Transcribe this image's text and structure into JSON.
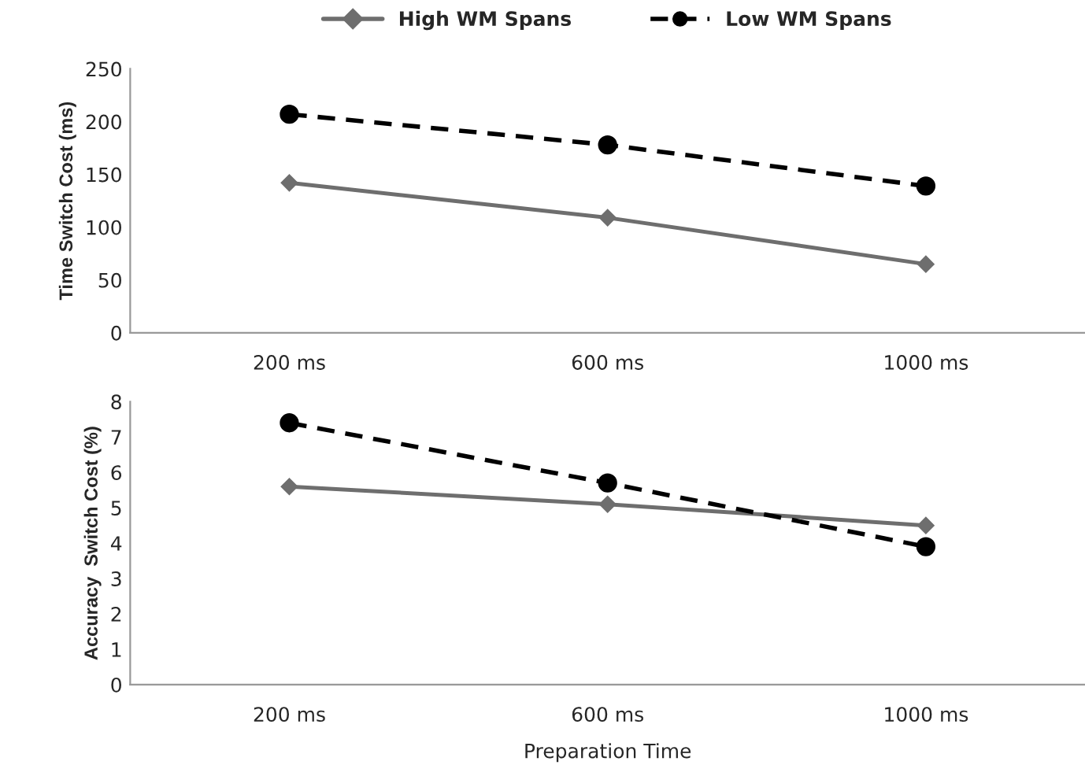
{
  "chart_data": [
    {
      "type": "line",
      "ylabel": "Time Switch Cost (ms)",
      "categories": [
        "200 ms",
        "600 ms",
        "1000 ms"
      ],
      "ylim": [
        0,
        250
      ],
      "yticks": [
        0,
        50,
        100,
        150,
        200,
        250
      ],
      "grid": false,
      "legend": "top",
      "series": [
        {
          "name": "High WM Spans",
          "color": "#6e6e6e",
          "marker": "diamond",
          "line_style": "solid",
          "values": [
            142,
            109,
            65
          ]
        },
        {
          "name": "Low WM Spans",
          "color": "#000000",
          "marker": "circle",
          "line_style": "dashed",
          "values": [
            207,
            178,
            139
          ]
        }
      ]
    },
    {
      "type": "line",
      "ylabel": "Accuracy  Switch Cost (%)",
      "xlabel": "Preparation Time",
      "categories": [
        "200 ms",
        "600 ms",
        "1000 ms"
      ],
      "ylim": [
        0,
        8
      ],
      "yticks": [
        0,
        1,
        2,
        3,
        4,
        5,
        6,
        7,
        8
      ],
      "grid": false,
      "series": [
        {
          "color": "#6e6e6e",
          "marker": "diamond",
          "line_style": "solid",
          "values": [
            5.6,
            5.1,
            4.5
          ]
        },
        {
          "color": "#000000",
          "marker": "circle",
          "line_style": "dashed",
          "values": [
            7.4,
            5.7,
            3.9
          ]
        }
      ]
    }
  ]
}
